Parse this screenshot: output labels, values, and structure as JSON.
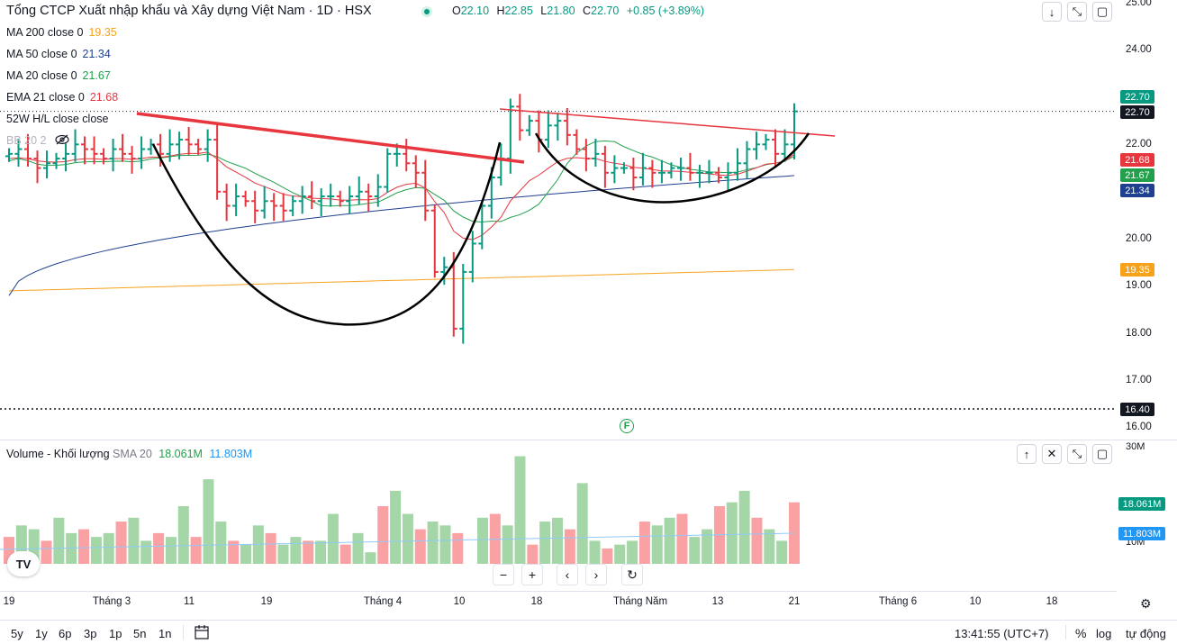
{
  "header": {
    "title": "Tổng CTCP Xuất nhập khẩu và Xây dựng Việt Nam · 1D · HSX",
    "ohlc": {
      "o_label": "O",
      "o": "22.10",
      "h_label": "H",
      "h": "22.85",
      "l_label": "L",
      "l": "21.80",
      "c_label": "C",
      "c": "22.70",
      "change": "+0.85 (+3.89%)"
    }
  },
  "indicators": [
    {
      "label": "MA 200 close 0",
      "value": "19.35",
      "color": "#f7a21b"
    },
    {
      "label": "MA 50 close 0",
      "value": "21.34",
      "color": "#1f3f8f"
    },
    {
      "label": "MA 20 close 0",
      "value": "21.67",
      "color": "#22a04b"
    },
    {
      "label": "EMA 21 close 0",
      "value": "21.68",
      "color": "#e8363f"
    },
    {
      "label": "52W H/L close close",
      "value": "",
      "color": "#131722"
    },
    {
      "label": "BB 20 2",
      "value": "",
      "color": "#b2b5be"
    }
  ],
  "price_axis": {
    "ticks": [
      "25.00",
      "24.00",
      "22.00",
      "20.00",
      "19.00",
      "18.00",
      "17.00",
      "16.00"
    ],
    "tags": [
      {
        "text": "22.70",
        "color": "#089981"
      },
      {
        "text": "22.70",
        "color": "#131722"
      },
      {
        "text": "21.68",
        "color": "#e8363f"
      },
      {
        "text": "21.67",
        "color": "#22a04b"
      },
      {
        "text": "21.34",
        "color": "#1f3f8f"
      },
      {
        "text": "19.35",
        "color": "#f7a21b"
      },
      {
        "text": "16.40",
        "color": "#131722"
      }
    ]
  },
  "volume_pane": {
    "label": "Volume - Khối lượng",
    "sma_label": "SMA 20",
    "vol_value": "18.061M",
    "sma_value": "11.803M",
    "ticks": [
      "30M",
      "10M"
    ],
    "tags": [
      {
        "text": "18.061M",
        "color": "#089981"
      },
      {
        "text": "11.803M",
        "color": "#2196f3"
      }
    ]
  },
  "time_axis": [
    "19",
    "Tháng 3",
    "11",
    "19",
    "Tháng 4",
    "10",
    "18",
    "Tháng Năm",
    "13",
    "21",
    "Tháng 6",
    "10",
    "18"
  ],
  "bottom": {
    "periods": [
      "5y",
      "1y",
      "6p",
      "3p",
      "1p",
      "5n",
      "1n"
    ],
    "clock": "13:41:55 (UTC+7)",
    "percent": "%",
    "log": "log",
    "auto": "tự động"
  },
  "marker": "F",
  "logo": "TV",
  "chart_data": {
    "type": "ohlc",
    "price_range": [
      15.9,
      25.0
    ],
    "closes": [
      21.8,
      21.9,
      21.7,
      21.5,
      21.6,
      21.7,
      21.8,
      22.0,
      21.9,
      21.8,
      21.7,
      21.9,
      21.8,
      21.7,
      21.9,
      22.0,
      21.8,
      22.0,
      22.1,
      22.0,
      21.9,
      22.1,
      21.0,
      20.7,
      20.9,
      20.8,
      20.6,
      20.8,
      20.7,
      20.6,
      20.8,
      20.9,
      20.8,
      20.9,
      20.9,
      20.8,
      20.9,
      21.0,
      20.9,
      21.1,
      21.8,
      21.8,
      21.6,
      21.4,
      20.6,
      19.3,
      19.4,
      18.1,
      19.3,
      19.9,
      20.7,
      21.3,
      21.7,
      22.8,
      22.3,
      22.5,
      22.1,
      22.4,
      22.5,
      22.2,
      21.9,
      21.7,
      21.8,
      21.4,
      21.5,
      21.5,
      21.3,
      21.5,
      21.4,
      21.4,
      21.5,
      21.5,
      21.4,
      21.4,
      21.4,
      21.3,
      21.4,
      21.6,
      21.9,
      22.0,
      22.1,
      21.8,
      22.0,
      22.7
    ]
  }
}
